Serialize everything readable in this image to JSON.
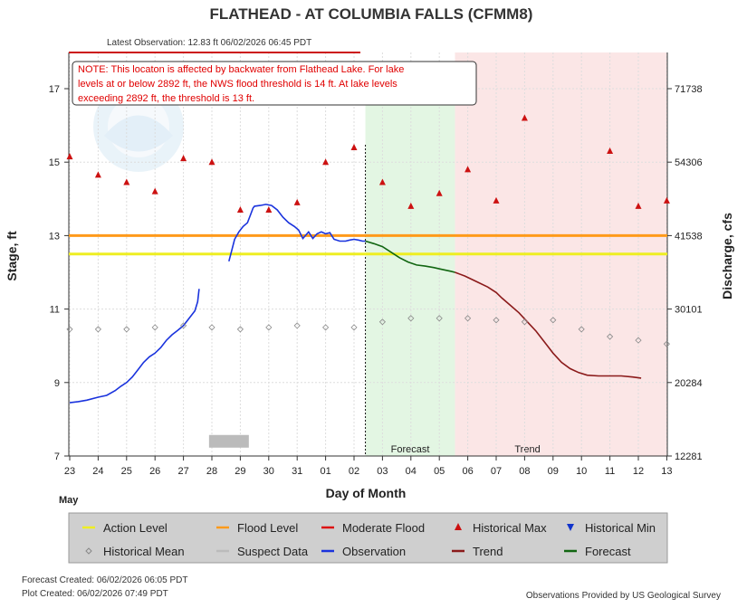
{
  "header": {
    "title": "FLATHEAD - AT COLUMBIA FALLS  (CFMM8)",
    "latest_observation": "Latest Observation: 12.83 ft 06/02/2026 06:45 PDT"
  },
  "note": {
    "line1": "NOTE: This locaton is affected by backwater from Flathead Lake. For lake",
    "line2": "levels at or below 2892 ft, the NWS flood threshold is 14 ft.  At lake levels",
    "line3": "exceeding 2892 ft, the threshold is 13 ft."
  },
  "labels": {
    "forecast_region": "Forecast",
    "trend_region": "Trend",
    "month": "May"
  },
  "legend": {
    "items": [
      {
        "label": "Action Level",
        "color": "#eeee22",
        "symbol": "line"
      },
      {
        "label": "Flood Level",
        "color": "#ff9a1a",
        "symbol": "line"
      },
      {
        "label": "Moderate Flood",
        "color": "#dd1111",
        "symbol": "line"
      },
      {
        "label": "Historical Max",
        "color": "#cc1111",
        "symbol": "triangle-up"
      },
      {
        "label": "Historical Min",
        "color": "#1133cc",
        "symbol": "triangle-down"
      },
      {
        "label": "Historical Mean",
        "color": "#888888",
        "symbol": "diamond"
      },
      {
        "label": "Suspect Data",
        "color": "#bbbbbb",
        "symbol": "line"
      },
      {
        "label": "Observation",
        "color": "#1a33dd",
        "symbol": "line"
      },
      {
        "label": "Trend",
        "color": "#8b1a1a",
        "symbol": "line"
      },
      {
        "label": "Forecast",
        "color": "#116611",
        "symbol": "line"
      }
    ]
  },
  "footer": {
    "forecast_created": "Forecast Created: 06/02/2026 06:05 PDT",
    "plot_created": "Plot Created: 06/02/2026 07:49 PDT",
    "provider": "Observations Provided by US Geological Survey"
  },
  "chart_data": {
    "type": "line",
    "title": "FLATHEAD - AT COLUMBIA FALLS  (CFMM8)",
    "xlabel": "Day of Month",
    "ylabel": "Stage, ft",
    "y2label": "Discharge, cfs",
    "x_ticks": [
      "23",
      "24",
      "25",
      "26",
      "27",
      "28",
      "29",
      "30",
      "31",
      "01",
      "02",
      "03",
      "04",
      "05",
      "06",
      "07",
      "08",
      "09",
      "10",
      "11",
      "12",
      "13"
    ],
    "x_range": [
      0,
      21
    ],
    "ylim": [
      7,
      17.8
    ],
    "y_ticks": [
      7,
      9,
      11,
      13,
      15,
      17
    ],
    "y2_ticks": [
      {
        "stage": 7,
        "label": "12281"
      },
      {
        "stage": 9,
        "label": "20284"
      },
      {
        "stage": 11,
        "label": "30101"
      },
      {
        "stage": 13,
        "label": "41538"
      },
      {
        "stage": 15,
        "label": "54306"
      },
      {
        "stage": 17,
        "label": "71738"
      }
    ],
    "thresholds": {
      "action": 12.5,
      "flood": 13,
      "moderate": 17.9
    },
    "forecast_start_x": 10.4,
    "forecast_region": [
      10.4,
      13.55
    ],
    "trend_region": [
      13.55,
      21
    ],
    "suspect_data": {
      "x": [
        4.9,
        6.3
      ],
      "y": 7.4
    },
    "series": [
      {
        "name": "Observation",
        "color": "#1a33dd",
        "x": [
          0,
          0.3,
          0.6,
          1,
          1.3,
          1.6,
          1.8,
          2,
          2.2,
          2.4,
          2.6,
          2.8,
          3,
          3.2,
          3.4,
          3.6,
          3.8,
          4,
          4.2,
          4.4,
          4.5,
          4.55
        ],
        "y": [
          8.45,
          8.48,
          8.52,
          8.6,
          8.65,
          8.78,
          8.9,
          9.0,
          9.15,
          9.35,
          9.55,
          9.7,
          9.8,
          9.95,
          10.15,
          10.3,
          10.42,
          10.55,
          10.75,
          10.95,
          11.2,
          11.55
        ],
        "segment2": {
          "x": [
            5.6,
            5.7,
            5.8,
            5.95,
            6.1,
            6.25,
            6.35,
            6.45,
            6.5,
            6.7,
            6.9,
            7.1,
            7.3,
            7.5,
            7.7,
            7.9,
            8.05,
            8.2,
            8.4,
            8.55,
            8.7,
            8.85,
            9,
            9.15,
            9.3,
            9.5,
            9.7,
            9.85,
            10,
            10.15,
            10.3,
            10.4
          ],
          "y": [
            12.3,
            12.6,
            12.9,
            13.1,
            13.25,
            13.35,
            13.55,
            13.75,
            13.8,
            13.82,
            13.85,
            13.82,
            13.7,
            13.5,
            13.35,
            13.25,
            13.15,
            12.92,
            13.1,
            12.92,
            13.05,
            13.1,
            13.05,
            13.08,
            12.9,
            12.85,
            12.85,
            12.88,
            12.9,
            12.88,
            12.85,
            12.85
          ]
        }
      },
      {
        "name": "Forecast",
        "color": "#116611",
        "x": [
          10.4,
          10.7,
          11,
          11.3,
          11.6,
          11.9,
          12.2,
          12.5,
          12.8,
          13.1,
          13.4,
          13.55
        ],
        "y": [
          12.85,
          12.78,
          12.7,
          12.55,
          12.4,
          12.28,
          12.2,
          12.17,
          12.13,
          12.08,
          12.03,
          12.0
        ]
      },
      {
        "name": "Trend",
        "color": "#8b1a1a",
        "x": [
          13.55,
          13.9,
          14.3,
          14.7,
          15,
          15.2,
          15.5,
          15.8,
          16.1,
          16.4,
          16.7,
          17,
          17.3,
          17.6,
          17.9,
          18.2,
          18.6,
          19,
          19.4,
          19.8,
          20.1
        ],
        "y": [
          12.0,
          11.9,
          11.75,
          11.6,
          11.45,
          11.3,
          11.1,
          10.9,
          10.65,
          10.4,
          10.1,
          9.8,
          9.55,
          9.38,
          9.27,
          9.2,
          9.18,
          9.18,
          9.18,
          9.15,
          9.12
        ]
      },
      {
        "name": "Historical Max",
        "color": "#cc1111",
        "x": [
          0,
          1,
          2,
          3,
          4,
          5,
          6,
          7,
          8,
          9,
          10,
          11,
          12,
          13,
          14,
          15,
          16,
          17,
          18,
          19,
          20,
          21
        ],
        "y": [
          15.15,
          14.65,
          14.45,
          14.2,
          15.1,
          15.0,
          13.7,
          13.7,
          13.9,
          15.0,
          15.4,
          14.45,
          13.8,
          14.15,
          14.8,
          13.95,
          16.2,
          null,
          null,
          15.3,
          13.8,
          13.95
        ]
      },
      {
        "name": "Historical Mean",
        "color": "#888888",
        "x": [
          0,
          1,
          2,
          3,
          4,
          5,
          6,
          7,
          8,
          9,
          10,
          11,
          12,
          13,
          14,
          15,
          16,
          17,
          18,
          19,
          20,
          21
        ],
        "y": [
          10.45,
          10.45,
          10.45,
          10.5,
          10.55,
          10.5,
          10.45,
          10.5,
          10.55,
          10.5,
          10.5,
          10.65,
          10.75,
          10.75,
          10.75,
          10.7,
          10.65,
          10.7,
          10.45,
          10.25,
          10.15,
          10.05
        ]
      }
    ]
  }
}
